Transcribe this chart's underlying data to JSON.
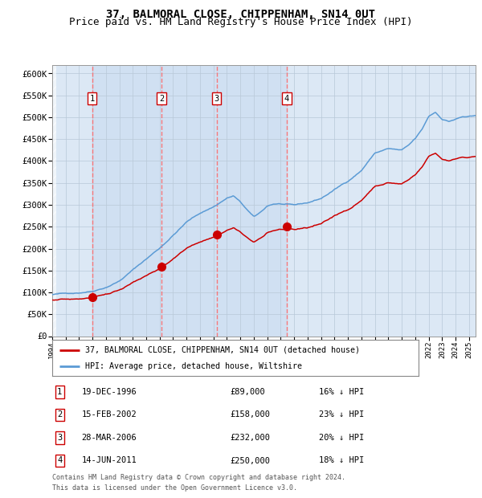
{
  "title": "37, BALMORAL CLOSE, CHIPPENHAM, SN14 0UT",
  "subtitle": "Price paid vs. HM Land Registry's House Price Index (HPI)",
  "legend_line1": "37, BALMORAL CLOSE, CHIPPENHAM, SN14 0UT (detached house)",
  "legend_line2": "HPI: Average price, detached house, Wiltshire",
  "footer1": "Contains HM Land Registry data © Crown copyright and database right 2024.",
  "footer2": "This data is licensed under the Open Government Licence v3.0.",
  "sales": [
    {
      "num": 1,
      "date": "1996-12-19",
      "price": 89000,
      "pct": "16%",
      "x": 1996.97
    },
    {
      "num": 2,
      "date": "2002-02-15",
      "price": 158000,
      "pct": "23%",
      "x": 2002.13
    },
    {
      "num": 3,
      "date": "2006-03-28",
      "price": 232000,
      "pct": "20%",
      "x": 2006.24
    },
    {
      "num": 4,
      "date": "2011-06-14",
      "price": 250000,
      "pct": "18%",
      "x": 2011.45
    }
  ],
  "sale_dates_display": [
    "19-DEC-1996",
    "15-FEB-2002",
    "28-MAR-2006",
    "14-JUN-2011"
  ],
  "sale_prices_display": [
    "£89,000",
    "£158,000",
    "£232,000",
    "£250,000"
  ],
  "sale_pcts_display": [
    "16% ↓ HPI",
    "23% ↓ HPI",
    "20% ↓ HPI",
    "18% ↓ HPI"
  ],
  "xmin": 1994.0,
  "xmax": 2025.5,
  "ymin": 0,
  "ymax": 620000,
  "yticks": [
    0,
    50000,
    100000,
    150000,
    200000,
    250000,
    300000,
    350000,
    400000,
    450000,
    500000,
    550000,
    600000
  ],
  "ylabels": [
    "£0",
    "£50K",
    "£100K",
    "£150K",
    "£200K",
    "£250K",
    "£300K",
    "£350K",
    "£400K",
    "£450K",
    "£500K",
    "£550K",
    "£600K"
  ],
  "hpi_color": "#5b9bd5",
  "price_color": "#cc0000",
  "sale_marker_color": "#cc0000",
  "vline_color": "#ff6666",
  "plot_bg": "#dce8f5",
  "grid_color": "#b8c8d8",
  "title_fontsize": 10,
  "subtitle_fontsize": 9,
  "hpi_anchors_t": [
    1994.0,
    1995.0,
    1996.0,
    1997.0,
    1998.0,
    1999.0,
    2000.0,
    2001.0,
    2002.0,
    2003.0,
    2004.0,
    2005.0,
    2006.0,
    2007.0,
    2007.5,
    2008.0,
    2009.0,
    2009.5,
    2010.0,
    2010.5,
    2011.0,
    2012.0,
    2013.0,
    2014.0,
    2015.0,
    2016.0,
    2017.0,
    2018.0,
    2019.0,
    2020.0,
    2020.5,
    2021.0,
    2021.5,
    2022.0,
    2022.5,
    2023.0,
    2023.5,
    2024.0,
    2024.5,
    2025.3
  ],
  "hpi_anchors_p": [
    95000,
    97000,
    100000,
    105000,
    115000,
    130000,
    155000,
    180000,
    205000,
    235000,
    265000,
    285000,
    300000,
    320000,
    325000,
    310000,
    275000,
    285000,
    300000,
    305000,
    305000,
    300000,
    305000,
    315000,
    335000,
    355000,
    380000,
    420000,
    430000,
    425000,
    435000,
    450000,
    470000,
    500000,
    510000,
    495000,
    490000,
    495000,
    500000,
    500000
  ]
}
